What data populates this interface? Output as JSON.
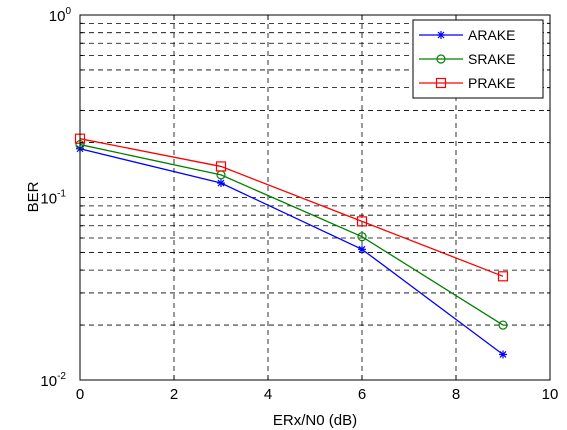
{
  "chart_data": {
    "type": "line",
    "title": "",
    "xlabel": "ERx/N0 (dB)",
    "ylabel": "BER",
    "xlim": [
      0,
      10
    ],
    "ylim": [
      0.01,
      1
    ],
    "yscale": "log",
    "grid": true,
    "legend_position": "top-right",
    "x_ticks": [
      "0",
      "2",
      "4",
      "6",
      "8",
      "10"
    ],
    "y_ticks": [
      {
        "base": "10",
        "exp": "-2"
      },
      {
        "base": "10",
        "exp": "-1"
      },
      {
        "base": "10",
        "exp": "0"
      }
    ],
    "x": [
      0,
      3,
      6,
      9
    ],
    "series": [
      {
        "name": "ARAKE",
        "color": "#0000ff",
        "marker": "star",
        "values": [
          0.185,
          0.12,
          0.052,
          0.0138
        ]
      },
      {
        "name": "SRAKE",
        "color": "#008000",
        "marker": "circle",
        "values": [
          0.195,
          0.133,
          0.061,
          0.02
        ]
      },
      {
        "name": "PRAKE",
        "color": "#ff0000",
        "marker": "square",
        "values": [
          0.21,
          0.148,
          0.074,
          0.037
        ]
      }
    ]
  }
}
